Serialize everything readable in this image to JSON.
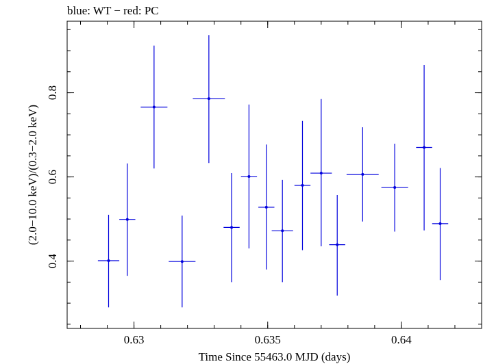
{
  "chart_data": {
    "type": "scatter",
    "title": "blue: WT − red: PC",
    "xlabel": "Time Since 55463.0 MJD (days)",
    "ylabel": "(2.0−10.0 keV)/(0.3−2.0 keV)",
    "xlim": [
      0.6275,
      0.643
    ],
    "ylim": [
      0.24,
      0.97
    ],
    "x_ticks": [
      0.63,
      0.635,
      0.64
    ],
    "x_tick_labels": [
      "0.63",
      "0.635",
      "0.64"
    ],
    "y_ticks": [
      0.4,
      0.6,
      0.8
    ],
    "y_tick_labels": [
      "0.4",
      "0.6",
      "0.8"
    ],
    "grid": false,
    "series": [
      {
        "color": "#0000dd",
        "points": [
          {
            "x": 0.62905,
            "y": 0.401,
            "xerr": 0.0004,
            "ylo": 0.29,
            "yhi": 0.51
          },
          {
            "x": 0.62975,
            "y": 0.499,
            "xerr": 0.0003,
            "ylo": 0.365,
            "yhi": 0.632
          },
          {
            "x": 0.63075,
            "y": 0.766,
            "xerr": 0.0005,
            "ylo": 0.62,
            "yhi": 0.912
          },
          {
            "x": 0.6318,
            "y": 0.399,
            "xerr": 0.0005,
            "ylo": 0.29,
            "yhi": 0.508
          },
          {
            "x": 0.6328,
            "y": 0.786,
            "xerr": 0.0006,
            "ylo": 0.633,
            "yhi": 0.937
          },
          {
            "x": 0.63365,
            "y": 0.48,
            "xerr": 0.0003,
            "ylo": 0.35,
            "yhi": 0.609
          },
          {
            "x": 0.6343,
            "y": 0.601,
            "xerr": 0.0003,
            "ylo": 0.43,
            "yhi": 0.772
          },
          {
            "x": 0.63495,
            "y": 0.528,
            "xerr": 0.0003,
            "ylo": 0.38,
            "yhi": 0.677
          },
          {
            "x": 0.63555,
            "y": 0.472,
            "xerr": 0.0004,
            "ylo": 0.35,
            "yhi": 0.593
          },
          {
            "x": 0.6363,
            "y": 0.58,
            "xerr": 0.0003,
            "ylo": 0.426,
            "yhi": 0.733
          },
          {
            "x": 0.637,
            "y": 0.609,
            "xerr": 0.0004,
            "ylo": 0.435,
            "yhi": 0.785
          },
          {
            "x": 0.6376,
            "y": 0.439,
            "xerr": 0.0003,
            "ylo": 0.318,
            "yhi": 0.557
          },
          {
            "x": 0.63855,
            "y": 0.606,
            "xerr": 0.0006,
            "ylo": 0.494,
            "yhi": 0.718
          },
          {
            "x": 0.63975,
            "y": 0.575,
            "xerr": 0.0005,
            "ylo": 0.47,
            "yhi": 0.679
          },
          {
            "x": 0.64085,
            "y": 0.67,
            "xerr": 0.0003,
            "ylo": 0.473,
            "yhi": 0.866
          },
          {
            "x": 0.64145,
            "y": 0.489,
            "xerr": 0.0003,
            "ylo": 0.355,
            "yhi": 0.621
          }
        ]
      }
    ]
  }
}
